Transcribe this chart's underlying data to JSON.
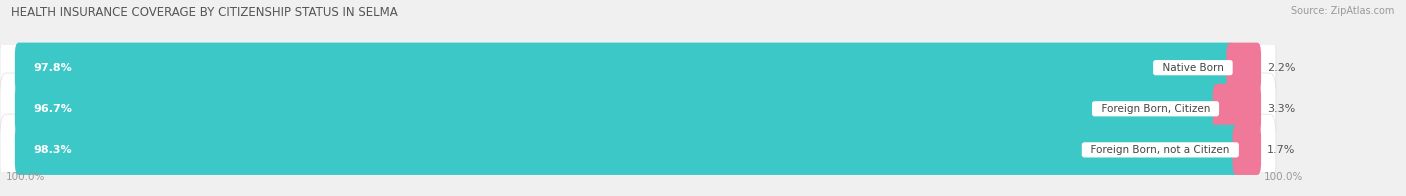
{
  "title": "HEALTH INSURANCE COVERAGE BY CITIZENSHIP STATUS IN SELMA",
  "source": "Source: ZipAtlas.com",
  "categories": [
    "Native Born",
    "Foreign Born, Citizen",
    "Foreign Born, not a Citizen"
  ],
  "with_coverage": [
    97.8,
    96.7,
    98.3
  ],
  "without_coverage": [
    2.2,
    3.3,
    1.7
  ],
  "color_with": "#3DC8C8",
  "color_without": "#F07898",
  "background_color": "#F0F0F0",
  "bar_bg_color": "#FFFFFF",
  "title_fontsize": 8.5,
  "source_fontsize": 7,
  "label_fontsize": 8,
  "tick_fontsize": 7.5,
  "legend_fontsize": 8
}
